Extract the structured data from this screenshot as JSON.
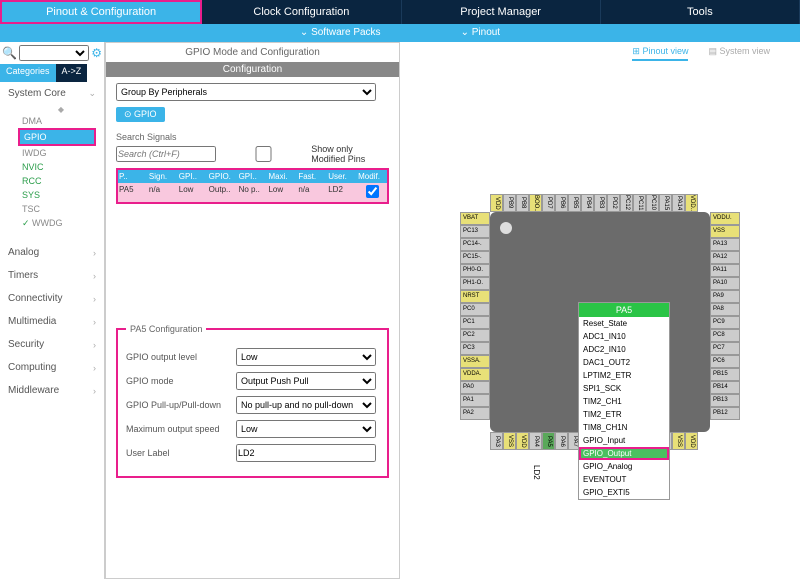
{
  "mainTabs": {
    "t0": "Pinout & Configuration",
    "t1": "Clock Configuration",
    "t2": "Project Manager",
    "t3": "Tools"
  },
  "subTabs": {
    "s0": "Software Packs",
    "s1": "Pinout"
  },
  "catTabs": {
    "cat": "Categories",
    "az": "A->Z"
  },
  "categories": {
    "c0": "System Core",
    "c1": "Analog",
    "c2": "Timers",
    "c3": "Connectivity",
    "c4": "Multimedia",
    "c5": "Security",
    "c6": "Computing",
    "c7": "Middleware"
  },
  "scItems": {
    "i0": "DMA",
    "i1": "GPIO",
    "i2": "IWDG",
    "i3": "NVIC",
    "i4": "RCC",
    "i5": "SYS",
    "i6": "TSC",
    "i7": "WWDG"
  },
  "center": {
    "title": "GPIO Mode and Configuration",
    "configHeader": "Configuration",
    "groupBy": "Group By Peripherals",
    "gpioChip": "GPIO",
    "searchSignalsLabel": "Search Signals",
    "searchPlaceholder": "Search (Ctrl+F)",
    "showModified": "Show only Modified Pins"
  },
  "table": {
    "h0": "P..",
    "h1": "Sign.",
    "h2": "GPI..",
    "h3": "GPIO.",
    "h4": "GPI..",
    "h5": "Maxi.",
    "h6": "Fast.",
    "h7": "User.",
    "h8": "Modif.",
    "r0": "PA5",
    "r1": "n/a",
    "r2": "Low",
    "r3": "Outp..",
    "r4": "No p..",
    "r5": "Low",
    "r6": "n/a",
    "r7": "LD2"
  },
  "cfg": {
    "legend": "PA5 Configuration",
    "l0": "GPIO output level",
    "v0": "Low",
    "l1": "GPIO mode",
    "v1": "Output Push Pull",
    "l2": "GPIO Pull-up/Pull-down",
    "v2": "No pull-up and no pull-down",
    "l3": "Maximum output speed",
    "v3": "Low",
    "l4": "User Label",
    "v4": "LD2"
  },
  "viewToggle": {
    "pinout": "Pinout view",
    "system": "System view"
  },
  "ctxMenu": {
    "head": "PA5",
    "m0": "Reset_State",
    "m1": "ADC1_IN10",
    "m2": "ADC2_IN10",
    "m3": "DAC1_OUT2",
    "m4": "LPTIM2_ETR",
    "m5": "SPI1_SCK",
    "m6": "TIM2_CH1",
    "m7": "TIM2_ETR",
    "m8": "TIM8_CH1N",
    "m9": "GPIO_Input",
    "m10": "GPIO_Output",
    "m11": "GPIO_Analog",
    "m12": "EVENTOUT",
    "m13": "GPIO_EXTI5"
  },
  "pins": {
    "top": [
      "VDD",
      "PB9",
      "PB8",
      "BOO..",
      "PD7",
      "PB6",
      "PB5",
      "PB4",
      "PB3",
      "PD2",
      "PC12",
      "PC11",
      "PC10",
      "PA15",
      "PA14",
      "VDD.."
    ],
    "right": [
      "VDDU.",
      "VSS",
      "PA13",
      "PA12",
      "PA11",
      "PA10",
      "PA9",
      "PA8",
      "PC9",
      "PC8",
      "PC7",
      "PC6",
      "PB15",
      "PB14",
      "PB13",
      "PB12"
    ],
    "bottom": [
      "PA3",
      "VSS",
      "VDD",
      "PA4",
      "PA5",
      "PA6",
      "PA7",
      "PC4",
      "PC5",
      "PB0",
      "PB1",
      "PB2",
      "PB10",
      "PB11",
      "VSS",
      "VDD"
    ],
    "left": [
      "VBAT",
      "PC13",
      "PC14-.",
      "PC15-.",
      "PH0-O.",
      "PH1-O.",
      "NRST",
      "PC0",
      "PC1",
      "PC2",
      "PC3",
      "VSSA.",
      "VDDA.",
      "PA0",
      "PA1",
      "PA2"
    ]
  },
  "ld2": "LD2",
  "colors": {
    "highlight": "#e91e8c",
    "accent": "#3bb4e8",
    "navy": "#0a2540"
  }
}
